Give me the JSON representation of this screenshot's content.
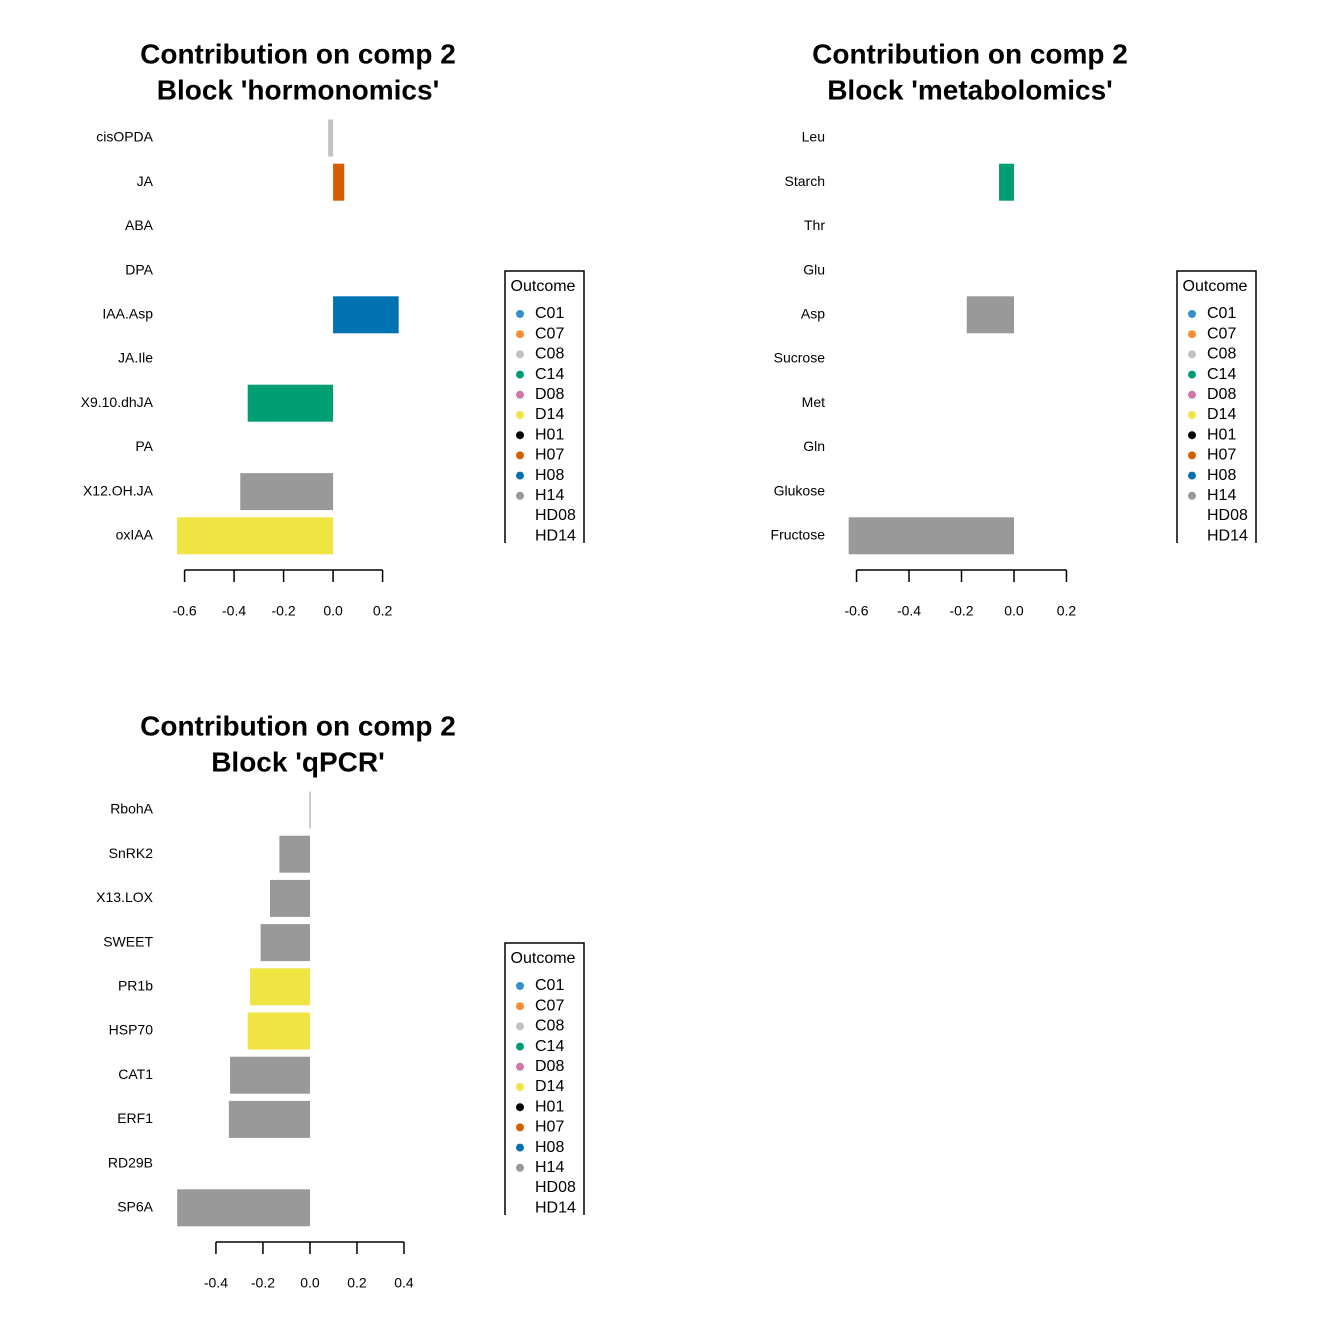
{
  "chart_data": [
    {
      "type": "bar",
      "title": "Contribution on comp 2",
      "subtitle": "Block 'hormonomics'",
      "categories": [
        "cisOPDA",
        "JA",
        "ABA",
        "DPA",
        "IAA.Asp",
        "JA.Ile",
        "X9.10.dhJA",
        "PA",
        "X12.OH.JA",
        "oxIAA"
      ],
      "values": [
        -0.02,
        0.045,
        null,
        null,
        0.265,
        null,
        -0.345,
        null,
        -0.375,
        -0.63
      ],
      "colors": [
        "#C2C2C2",
        "#D55E00",
        null,
        null,
        "#0072B2",
        null,
        "#009E73",
        null,
        "#999999",
        "#F0E442"
      ],
      "xlim": [
        -0.667,
        0.634
      ],
      "xticks": [
        -0.6,
        -0.4,
        -0.2,
        {
          "value": 0,
          "label": "0.0"
        },
        0.2
      ],
      "legend": {
        "title": "Outcome",
        "entries": [
          {
            "name": "C01",
            "color": "#388ECC"
          },
          {
            "name": "C07",
            "color": "#F68B33"
          },
          {
            "name": "C08",
            "color": "#C2C2C2"
          },
          {
            "name": "C14",
            "color": "#009E73"
          },
          {
            "name": "D08",
            "color": "#CC79A7"
          },
          {
            "name": "D14",
            "color": "#F0E442"
          },
          {
            "name": "H01",
            "color": "#000000"
          },
          {
            "name": "H07",
            "color": "#D55E00"
          },
          {
            "name": "H08",
            "color": "#0072B2"
          },
          {
            "name": "H14",
            "color": "#999999"
          },
          {
            "name": "HD08",
            "color": null
          },
          {
            "name": "HD14",
            "color": null
          }
        ]
      }
    },
    {
      "type": "bar",
      "title": "Contribution on comp 2",
      "subtitle": "Block 'metabolomics'",
      "categories": [
        "Leu",
        "Starch",
        "Thr",
        "Glu",
        "Asp",
        "Sucrose",
        "Met",
        "Gln",
        "Glukose",
        "Fructose"
      ],
      "values": [
        null,
        -0.057,
        null,
        null,
        -0.18,
        null,
        null,
        null,
        null,
        -0.63
      ],
      "colors": [
        null,
        "#009E73",
        null,
        null,
        "#999999",
        null,
        null,
        null,
        null,
        "#999999"
      ],
      "xlim": [
        -0.663,
        0.564
      ],
      "xticks": [
        -0.6,
        -0.4,
        -0.2,
        {
          "value": 0,
          "label": "0.0"
        },
        0.2
      ],
      "legend": {
        "title": "Outcome",
        "entries": [
          {
            "name": "C01",
            "color": "#388ECC"
          },
          {
            "name": "C07",
            "color": "#F68B33"
          },
          {
            "name": "C08",
            "color": "#C2C2C2"
          },
          {
            "name": "C14",
            "color": "#009E73"
          },
          {
            "name": "D08",
            "color": "#CC79A7"
          },
          {
            "name": "D14",
            "color": "#F0E442"
          },
          {
            "name": "H01",
            "color": "#000000"
          },
          {
            "name": "H07",
            "color": "#D55E00"
          },
          {
            "name": "H08",
            "color": "#0072B2"
          },
          {
            "name": "H14",
            "color": "#999999"
          },
          {
            "name": "HD08",
            "color": null
          },
          {
            "name": "HD14",
            "color": null
          }
        ]
      }
    },
    {
      "type": "bar",
      "title": "Contribution on comp 2",
      "subtitle": "Block 'qPCR'",
      "categories": [
        "RbohA",
        "SnRK2",
        "X13.LOX",
        "SWEET",
        "PR1b",
        "HSP70",
        "CAT1",
        "ERF1",
        "RD29B",
        "SP6A"
      ],
      "values": [
        -0.002,
        -0.13,
        -0.17,
        -0.21,
        -0.255,
        -0.265,
        -0.34,
        -0.345,
        null,
        -0.565
      ],
      "colors": [
        "#999999",
        "#999999",
        "#999999",
        "#999999",
        "#F0E442",
        "#F0E442",
        "#999999",
        "#999999",
        null,
        "#999999"
      ],
      "xlim": [
        -0.604,
        0.766
      ],
      "xticks": [
        -0.4,
        -0.2,
        {
          "value": 0,
          "label": "0.0"
        },
        0.2,
        0.4
      ],
      "legend": {
        "title": "Outcome",
        "entries": [
          {
            "name": "C01",
            "color": "#388ECC"
          },
          {
            "name": "C07",
            "color": "#F68B33"
          },
          {
            "name": "C08",
            "color": "#C2C2C2"
          },
          {
            "name": "C14",
            "color": "#009E73"
          },
          {
            "name": "D08",
            "color": "#CC79A7"
          },
          {
            "name": "D14",
            "color": "#F0E442"
          },
          {
            "name": "H01",
            "color": "#000000"
          },
          {
            "name": "H07",
            "color": "#D55E00"
          },
          {
            "name": "H08",
            "color": "#0072B2"
          },
          {
            "name": "H14",
            "color": "#999999"
          },
          {
            "name": "HD08",
            "color": null
          },
          {
            "name": "HD14",
            "color": null
          }
        ]
      }
    }
  ]
}
